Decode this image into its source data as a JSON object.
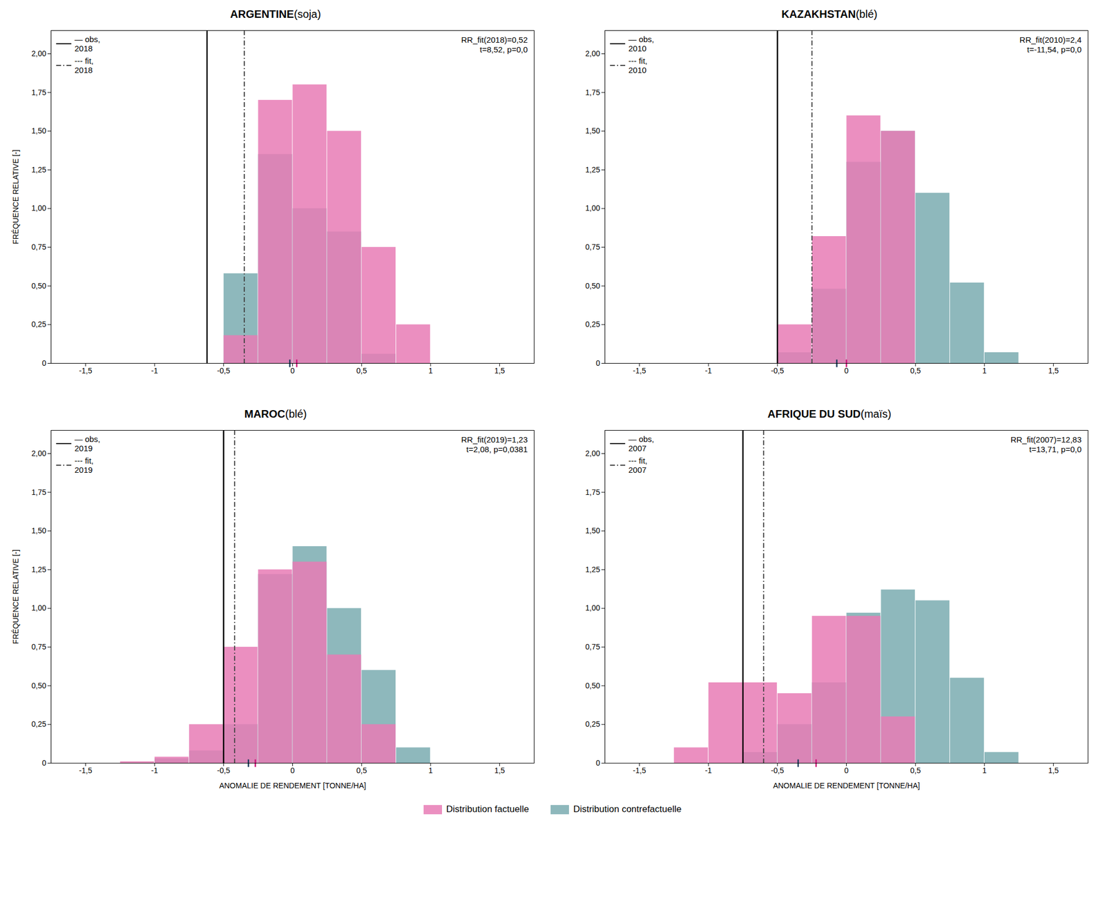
{
  "chart_data": [
    {
      "type": "histogram",
      "title": "ARGENTINE",
      "subtitle": "(soja)",
      "ylabel": "FRÉQUENCE RELATIVE [-]",
      "series": [
        {
          "name": "Distribution factuelle",
          "color": "#e87bb5",
          "bins": [
            -0.5,
            -0.25,
            0.0,
            0.25,
            0.5,
            0.75,
            1.0
          ],
          "values": [
            0.18,
            1.7,
            1.8,
            1.5,
            0.75,
            0.25
          ]
        },
        {
          "name": "Distribution contrefactuelle",
          "color": "#7aacb0",
          "bins": [
            -0.5,
            -0.25,
            0.0,
            0.25,
            0.5,
            0.75
          ],
          "values": [
            0.58,
            1.35,
            1.0,
            0.85,
            0.06
          ]
        }
      ],
      "lines": [
        {
          "name": "— obs,\n2018",
          "x": -0.62,
          "color": "#000000",
          "line_style": "solid"
        },
        {
          "name": "--- fit,\n2018",
          "x": -0.35,
          "color": "#444444",
          "line_style": "dashdot"
        }
      ],
      "markers": [
        {
          "x": -0.02,
          "color": "#1a3a5c"
        },
        {
          "x": 0.03,
          "color": "#cc1177"
        }
      ],
      "annotations": [
        {
          "text": "RR_fit(2018)=0,52\nt=8,52, p=0,0"
        }
      ],
      "legend": "upper left",
      "grid": false,
      "xlim": [
        -1.75,
        1.75
      ],
      "ylim": [
        0,
        2.15
      ],
      "xticks": [
        {
          "value": -1.5,
          "label": "-1,5"
        },
        -1,
        {
          "value": -0.5,
          "label": "-0,5"
        },
        0,
        {
          "value": 0.5,
          "label": "0,5"
        },
        1,
        {
          "value": 1.5,
          "label": "1,5"
        }
      ],
      "yticks": [
        0,
        {
          "value": 0.25,
          "label": "0,25"
        },
        {
          "value": 0.5,
          "label": "0,50"
        },
        {
          "value": 0.75,
          "label": "0,75"
        },
        {
          "value": 1.0,
          "label": "1,00"
        },
        {
          "value": 1.25,
          "label": "1,25"
        },
        {
          "value": 1.5,
          "label": "1,50"
        },
        {
          "value": 1.75,
          "label": "1,75"
        },
        {
          "value": 2.0,
          "label": "2,00"
        }
      ]
    },
    {
      "type": "histogram",
      "title": "KAZAKHSTAN",
      "subtitle": "(blé)",
      "series": [
        {
          "name": "Distribution factuelle",
          "color": "#e87bb5",
          "bins": [
            -0.5,
            -0.25,
            0.0,
            0.25,
            0.5
          ],
          "values": [
            0.25,
            0.82,
            1.6,
            1.5
          ]
        },
        {
          "name": "Distribution contrefactuelle",
          "color": "#7aacb0",
          "bins": [
            -0.5,
            -0.25,
            0.0,
            0.25,
            0.5,
            0.75,
            1.0,
            1.25
          ],
          "values": [
            0.07,
            0.48,
            1.3,
            1.5,
            1.1,
            0.52,
            0.07
          ]
        }
      ],
      "lines": [
        {
          "name": "— obs,\n2010",
          "x": -0.5,
          "color": "#000000",
          "line_style": "solid"
        },
        {
          "name": "--- fit,\n2010",
          "x": -0.25,
          "color": "#444444",
          "line_style": "dashdot"
        }
      ],
      "markers": [
        {
          "x": -0.07,
          "color": "#1a3a5c"
        },
        {
          "x": 0.0,
          "color": "#cc1177"
        }
      ],
      "annotations": [
        {
          "text": "RR_fit(2010)=2,4\nt=-11,54, p=0,0"
        }
      ],
      "legend": "upper left",
      "grid": false,
      "xlim": [
        -1.75,
        1.75
      ],
      "ylim": [
        0,
        2.15
      ],
      "xticks": [
        {
          "value": -1.5,
          "label": "-1,5"
        },
        -1,
        {
          "value": -0.5,
          "label": "-0,5"
        },
        0,
        {
          "value": 0.5,
          "label": "0,5"
        },
        1,
        {
          "value": 1.5,
          "label": "1,5"
        }
      ],
      "yticks": [
        0,
        {
          "value": 0.25,
          "label": "0,25"
        },
        {
          "value": 0.5,
          "label": "0,50"
        },
        {
          "value": 0.75,
          "label": "0,75"
        },
        {
          "value": 1.0,
          "label": "1,00"
        },
        {
          "value": 1.25,
          "label": "1,25"
        },
        {
          "value": 1.5,
          "label": "1,50"
        },
        {
          "value": 1.75,
          "label": "1,75"
        },
        {
          "value": 2.0,
          "label": "2,00"
        }
      ]
    },
    {
      "type": "histogram",
      "title": "MAROC",
      "subtitle": "(blé)",
      "ylabel": "FRÉQUENCE RELATIVE [-]",
      "xlabel": "ANOMALIE DE RENDEMENT [TONNE/HA]",
      "series": [
        {
          "name": "Distribution factuelle",
          "color": "#e87bb5",
          "bins": [
            -1.25,
            -1.0,
            -0.75,
            -0.5,
            -0.25,
            0.0,
            0.25,
            0.5,
            0.75,
            1.0
          ],
          "values": [
            0.01,
            0.04,
            0.25,
            0.75,
            1.25,
            1.3,
            0.7,
            0.25,
            0.0
          ]
        },
        {
          "name": "Distribution contrefactuelle",
          "color": "#7aacb0",
          "bins": [
            -1.25,
            -1.0,
            -0.75,
            -0.5,
            -0.25,
            0.0,
            0.25,
            0.5,
            0.75,
            1.0
          ],
          "values": [
            0.0,
            0.03,
            0.08,
            0.25,
            1.22,
            1.4,
            1.0,
            0.6,
            0.1
          ]
        }
      ],
      "lines": [
        {
          "name": "— obs,\n2019",
          "x": -0.5,
          "color": "#000000",
          "line_style": "solid"
        },
        {
          "name": "--- fit,\n2019",
          "x": -0.42,
          "color": "#444444",
          "line_style": "dashdot"
        }
      ],
      "markers": [
        {
          "x": -0.32,
          "color": "#1a3a5c"
        },
        {
          "x": -0.27,
          "color": "#cc1177"
        }
      ],
      "annotations": [
        {
          "text": "RR_fit(2019)=1,23\nt=2,08, p=0,0381"
        }
      ],
      "legend": "upper left",
      "grid": false,
      "xlim": [
        -1.75,
        1.75
      ],
      "ylim": [
        0,
        2.15
      ],
      "xticks": [
        {
          "value": -1.5,
          "label": "-1,5"
        },
        -1,
        {
          "value": -0.5,
          "label": "-0,5"
        },
        0,
        {
          "value": 0.5,
          "label": "0,5"
        },
        1,
        {
          "value": 1.5,
          "label": "1,5"
        }
      ],
      "yticks": [
        0,
        {
          "value": 0.25,
          "label": "0,25"
        },
        {
          "value": 0.5,
          "label": "0,50"
        },
        {
          "value": 0.75,
          "label": "0,75"
        },
        {
          "value": 1.0,
          "label": "1,00"
        },
        {
          "value": 1.25,
          "label": "1,25"
        },
        {
          "value": 1.5,
          "label": "1,50"
        },
        {
          "value": 1.75,
          "label": "1,75"
        },
        {
          "value": 2.0,
          "label": "2,00"
        }
      ]
    },
    {
      "type": "histogram",
      "title": "AFRIQUE DU SUD",
      "subtitle": "(maïs)",
      "xlabel": "ANOMALIE DE RENDEMENT [TONNE/HA]",
      "series": [
        {
          "name": "Distribution factuelle",
          "color": "#e87bb5",
          "bins": [
            -1.25,
            -1.0,
            -0.75,
            -0.5,
            -0.25,
            0.0,
            0.25,
            0.5
          ],
          "values": [
            0.1,
            0.52,
            0.52,
            0.45,
            0.95,
            0.95,
            0.3
          ]
        },
        {
          "name": "Distribution contrefactuelle",
          "color": "#7aacb0",
          "bins": [
            -0.75,
            -0.5,
            -0.25,
            0.0,
            0.25,
            0.5,
            0.75,
            1.0,
            1.25
          ],
          "values": [
            0.07,
            0.25,
            0.52,
            0.97,
            1.12,
            1.05,
            0.55,
            0.07
          ]
        }
      ],
      "lines": [
        {
          "name": "— obs,\n2007",
          "x": -0.75,
          "color": "#000000",
          "line_style": "solid"
        },
        {
          "name": "--- fit,\n2007",
          "x": -0.6,
          "color": "#444444",
          "line_style": "dashdot"
        }
      ],
      "markers": [
        {
          "x": -0.35,
          "color": "#1a3a5c"
        },
        {
          "x": -0.22,
          "color": "#cc1177"
        }
      ],
      "annotations": [
        {
          "text": "RR_fit(2007)=12,83\nt=13,71, p=0,0"
        }
      ],
      "legend": "upper left",
      "grid": false,
      "xlim": [
        -1.75,
        1.75
      ],
      "ylim": [
        0,
        2.15
      ],
      "xticks": [
        {
          "value": -1.5,
          "label": "-1,5"
        },
        -1,
        {
          "value": -0.5,
          "label": "-0,5"
        },
        0,
        {
          "value": 0.5,
          "label": "0,5"
        },
        1,
        {
          "value": 1.5,
          "label": "1,5"
        }
      ],
      "yticks": [
        0,
        {
          "value": 0.25,
          "label": "0,25"
        },
        {
          "value": 0.5,
          "label": "0,50"
        },
        {
          "value": 0.75,
          "label": "0,75"
        },
        {
          "value": 1.0,
          "label": "1,00"
        },
        {
          "value": 1.25,
          "label": "1,25"
        },
        {
          "value": 1.5,
          "label": "1,50"
        },
        {
          "value": 1.75,
          "label": "1,75"
        },
        {
          "value": 2.0,
          "label": "2,00"
        }
      ]
    }
  ]
}
